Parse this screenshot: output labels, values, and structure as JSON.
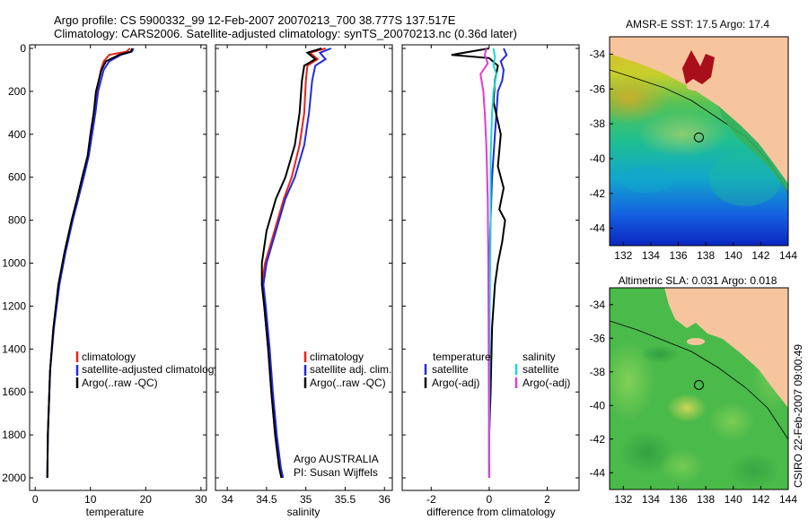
{
  "header": {
    "line1": "Argo profile: CS 5900332_99 12-Feb-2007 20070213_700 38.777S 137.517E",
    "line2": "Climatology: CARS2006. Satellite-adjusted climatology: synTS_20070213.nc (0.36d later)"
  },
  "side_label": "CSIRO 22-Feb-2007 09:00:49",
  "colors": {
    "climatology": "#e8231b",
    "satellite": "#1f2be0",
    "argo": "#000000",
    "sat_sal": "#19d7d7",
    "argo_sal": "#e03ad8",
    "land": "#f7c59d"
  },
  "chart_data": [
    {
      "type": "line",
      "id": "temperature",
      "xlabel": "temperature",
      "xlim": [
        -1,
        31
      ],
      "ylim": [
        0,
        2050
      ],
      "xticks": [
        "0",
        "10",
        "20",
        "30"
      ],
      "yticks": [
        "0",
        "200",
        "400",
        "600",
        "800",
        "1000",
        "1200",
        "1400",
        "1600",
        "1800",
        "2000"
      ],
      "legend": [
        "climatology",
        "satellite-adjusted climatology",
        "Argo(..raw -QC)"
      ],
      "series": [
        {
          "name": "climatology",
          "color": "#e8231b",
          "x": [
            17.2,
            16.5,
            13.4,
            12.4,
            11.9,
            11.5,
            11.2,
            10.6,
            10.1,
            9.6,
            8.6,
            7.7,
            6.7,
            5.4,
            4.3,
            3.3,
            2.7,
            2.3,
            2.2
          ],
          "y": [
            0,
            15,
            30,
            60,
            100,
            150,
            200,
            300,
            400,
            500,
            600,
            700,
            800,
            950,
            1100,
            1300,
            1500,
            1800,
            2000
          ]
        },
        {
          "name": "satellite-adjusted climatology",
          "color": "#1f2be0",
          "x": [
            17.8,
            17.5,
            15.5,
            13.4,
            12.4,
            11.9,
            11.4,
            10.9,
            10.3,
            9.7,
            8.8,
            7.8,
            6.8,
            5.5,
            4.4,
            3.4,
            2.7,
            2.3,
            2.2
          ],
          "y": [
            0,
            15,
            30,
            60,
            100,
            150,
            200,
            300,
            400,
            500,
            600,
            700,
            800,
            950,
            1100,
            1300,
            1500,
            1800,
            2000
          ]
        },
        {
          "name": "Argo(..raw -QC)",
          "color": "#000000",
          "x": [
            17.6,
            17.3,
            15.2,
            12.8,
            12.0,
            11.5,
            11.0,
            10.6,
            10.0,
            9.5,
            8.5,
            7.6,
            6.6,
            5.3,
            4.2,
            3.3,
            2.7,
            2.3,
            2.2
          ],
          "y": [
            0,
            15,
            30,
            60,
            100,
            150,
            200,
            300,
            400,
            500,
            600,
            700,
            800,
            950,
            1100,
            1300,
            1500,
            1800,
            2000
          ]
        }
      ]
    },
    {
      "type": "line",
      "id": "salinity",
      "xlabel": "salinity",
      "xlim": [
        33.85,
        36.1
      ],
      "ylim": [
        0,
        2050
      ],
      "xticks": [
        "34",
        "34.5",
        "35",
        "35.5",
        "36"
      ],
      "legend": [
        "climatology",
        "satellite adj. clim.",
        "Argo(..raw -QC)"
      ],
      "annotation": [
        "Argo AUSTRALIA",
        "PI: Susan Wijffels"
      ],
      "series": [
        {
          "name": "climatology",
          "color": "#e8231b",
          "x": [
            35.25,
            35.05,
            35.15,
            35.02,
            35.0,
            34.98,
            34.92,
            34.82,
            34.72,
            34.6,
            34.48,
            34.44,
            34.47,
            34.52,
            34.56,
            34.61,
            34.66,
            34.69
          ],
          "y": [
            0,
            20,
            50,
            80,
            150,
            300,
            450,
            600,
            700,
            850,
            1000,
            1100,
            1200,
            1400,
            1600,
            1800,
            1950,
            2000
          ]
        },
        {
          "name": "satellite adj. clim.",
          "color": "#1f2be0",
          "x": [
            35.32,
            35.18,
            35.25,
            35.12,
            35.08,
            35.04,
            34.98,
            34.86,
            34.74,
            34.62,
            34.5,
            34.46,
            34.49,
            34.54,
            34.58,
            34.63,
            34.68,
            34.71
          ],
          "y": [
            0,
            20,
            50,
            80,
            150,
            300,
            450,
            600,
            700,
            850,
            1000,
            1100,
            1200,
            1400,
            1600,
            1800,
            1950,
            2000
          ]
        },
        {
          "name": "Argo(..raw -QC)",
          "color": "#000000",
          "x": [
            35.2,
            35.02,
            35.12,
            34.98,
            34.95,
            34.92,
            34.86,
            34.74,
            34.62,
            34.5,
            34.44,
            34.44,
            34.47,
            34.52,
            34.56,
            34.61,
            34.66,
            34.69
          ],
          "y": [
            0,
            20,
            50,
            80,
            150,
            300,
            450,
            600,
            700,
            850,
            1000,
            1100,
            1200,
            1400,
            1600,
            1800,
            1950,
            2000
          ]
        }
      ]
    },
    {
      "type": "line",
      "id": "difference",
      "xlabel": "difference from climatology",
      "xlim": [
        -3,
        3.1
      ],
      "ylim": [
        0,
        2050
      ],
      "xticks": [
        "-2",
        "0",
        "2"
      ],
      "legend_left_title": "temperature",
      "legend_left": [
        "satellite",
        "Argo(-adj)"
      ],
      "legend_right_title": "salinity",
      "legend_right": [
        "satellite",
        "Argo(-adj)"
      ],
      "series": [
        {
          "name": "temperature satellite",
          "color": "#1f2be0",
          "x": [
            0.5,
            0.6,
            0.4,
            0.5,
            0.45,
            0.3,
            0.25,
            0.2,
            0.1,
            0.05,
            0,
            0,
            0,
            0,
            0
          ],
          "y": [
            0,
            30,
            60,
            100,
            150,
            200,
            300,
            400,
            600,
            800,
            1000,
            1200,
            1500,
            1800,
            2000
          ]
        },
        {
          "name": "temperature Argo(-adj)",
          "color": "#000000",
          "x": [
            0,
            -1.3,
            0,
            0.3,
            0.2,
            0.15,
            0.4,
            0.3,
            0.5,
            0.35,
            0.55,
            0.45,
            0.3,
            0.2,
            0.1,
            0.05,
            0,
            0
          ],
          "y": [
            0,
            30,
            45,
            80,
            150,
            250,
            400,
            550,
            650,
            750,
            800,
            900,
            1000,
            1100,
            1300,
            1600,
            1800,
            2000
          ]
        },
        {
          "name": "salinity satellite",
          "color": "#19d7d7",
          "x": [
            0.15,
            0.2,
            0.15,
            0.25,
            0.15,
            0.1,
            0.05,
            0.05,
            0.02,
            0.01,
            0
          ],
          "y": [
            0,
            40,
            80,
            120,
            200,
            300,
            500,
            800,
            1200,
            1600,
            2000
          ]
        },
        {
          "name": "salinity Argo(-adj)",
          "color": "#e03ad8",
          "x": [
            -0.1,
            -0.15,
            -0.05,
            -0.3,
            -0.2,
            -0.15,
            -0.1,
            -0.05,
            -0.03,
            0
          ],
          "y": [
            0,
            30,
            70,
            120,
            200,
            300,
            450,
            700,
            1000,
            2000
          ]
        }
      ]
    },
    {
      "type": "heatmap",
      "id": "sst-map",
      "title": "AMSR-E SST: 17.5 Argo: 17.4",
      "xticks": [
        "132",
        "134",
        "136",
        "138",
        "140",
        "142",
        "144"
      ],
      "yticks": [
        "-34",
        "-36",
        "-38",
        "-40",
        "-42",
        "-44"
      ],
      "xlim": [
        131,
        144
      ],
      "ylim": [
        -45,
        -33
      ],
      "profile_marker": {
        "lon": 137.5,
        "lat": -38.78
      }
    },
    {
      "type": "heatmap",
      "id": "sla-map",
      "title": "Altimetric SLA: 0.031 Argo: 0.018",
      "xticks": [
        "132",
        "134",
        "136",
        "138",
        "140",
        "142",
        "144"
      ],
      "yticks": [
        "-34",
        "-36",
        "-38",
        "-40",
        "-42",
        "-44"
      ],
      "xlim": [
        131,
        144
      ],
      "ylim": [
        -45,
        -33
      ],
      "profile_marker": {
        "lon": 137.5,
        "lat": -38.78
      }
    }
  ]
}
